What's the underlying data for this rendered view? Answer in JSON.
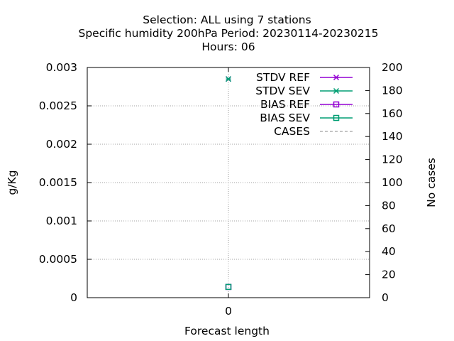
{
  "chart_data": {
    "type": "line",
    "title": [
      "Selection: ALL using     7 stations",
      "Specific humidity 200hPa   Period: 20230114-20230215",
      "Hours:  06"
    ],
    "xlabel": "Forecast length",
    "ylabel": "g/Kg",
    "y2label": "No cases",
    "x": [
      0
    ],
    "xticks": [
      "0"
    ],
    "ylim": [
      0,
      0.003
    ],
    "yticks": [
      "0",
      "0.0005",
      "0.001",
      "0.0015",
      "0.002",
      "0.0025",
      "0.003"
    ],
    "y2lim": [
      0,
      200
    ],
    "y2ticks": [
      "0",
      "20",
      "40",
      "60",
      "80",
      "100",
      "120",
      "140",
      "160",
      "180",
      "200"
    ],
    "grid": true,
    "legend_position": "top-right",
    "series": [
      {
        "name": "STDV REF",
        "values": [
          0.00285
        ],
        "axis": "y",
        "color": "#9400d3",
        "marker": "x-star"
      },
      {
        "name": "STDV SEV",
        "values": [
          0.00285
        ],
        "axis": "y",
        "color": "#009e73",
        "marker": "x-star"
      },
      {
        "name": "BIAS REF",
        "values": [
          0.00014
        ],
        "axis": "y",
        "color": "#9400d3",
        "marker": "square"
      },
      {
        "name": "BIAS SEV",
        "values": [
          0.00014
        ],
        "axis": "y",
        "color": "#009e73",
        "marker": "square"
      },
      {
        "name": "CASES",
        "values": [
          7
        ],
        "axis": "y2",
        "color": "#a0a0a0",
        "marker": "none",
        "dashed": true
      }
    ]
  }
}
